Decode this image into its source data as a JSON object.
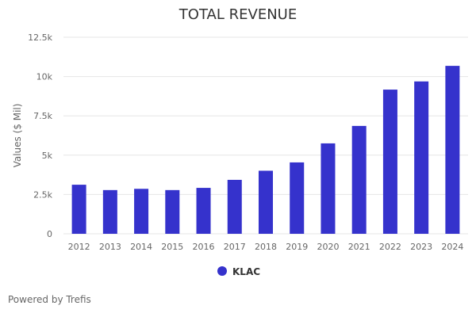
{
  "chart_data": {
    "type": "bar",
    "title": "TOTAL REVENUE",
    "ylabel": "Values ($ Mil)",
    "xlabel": "",
    "categories": [
      "2012",
      "2013",
      "2014",
      "2015",
      "2016",
      "2017",
      "2018",
      "2019",
      "2020",
      "2021",
      "2022",
      "2023",
      "2024"
    ],
    "series": [
      {
        "name": "KLAC",
        "values": [
          3120,
          2780,
          2860,
          2780,
          2920,
          3430,
          4010,
          4540,
          5750,
          6860,
          9170,
          9690,
          10680
        ]
      }
    ],
    "ylim": [
      0,
      12500
    ],
    "yticks": [
      0,
      2500,
      5000,
      7500,
      10000,
      12500
    ],
    "ytick_labels": [
      "0",
      "2.5k",
      "5k",
      "7.5k",
      "10k",
      "12.5k"
    ],
    "grid": true,
    "legend_position": "bottom-center",
    "colors": {
      "bar": "#3532cc"
    }
  },
  "footer": {
    "credits": "Powered by Trefis"
  }
}
